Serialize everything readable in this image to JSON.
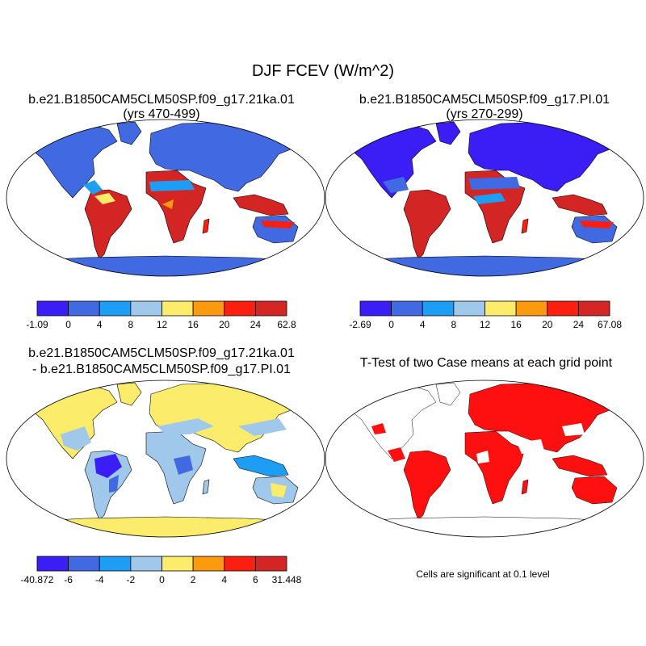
{
  "chart_data": [
    {
      "type": "map",
      "title": "DJF FCEV (W/m^2)",
      "subtitle_line1": "b.e21.B1850CAM5CLM50SP.f09_g17.21ka.01",
      "subtitle_line2": "(yrs 470-499)",
      "colorbar": {
        "labels": [
          "-1.09",
          "0",
          "4",
          "8",
          "12",
          "16",
          "20",
          "24",
          "62.8"
        ],
        "colors": [
          "#3b1ef5",
          "#4169e1",
          "#1e9df5",
          "#a0c8eb",
          "#fcec6c",
          "#fb9a0e",
          "#fb1f0f",
          "#d42525"
        ]
      }
    },
    {
      "type": "map",
      "subtitle_line1": "b.e21.B1850CAM5CLM50SP.f09_g17.PI.01",
      "subtitle_line2": "(yrs 270-299)",
      "colorbar": {
        "labels": [
          "-2.69",
          "0",
          "4",
          "8",
          "12",
          "16",
          "20",
          "24",
          "67.08"
        ],
        "colors": [
          "#3b1ef5",
          "#4169e1",
          "#1e9df5",
          "#a0c8eb",
          "#fcec6c",
          "#fb9a0e",
          "#fb1f0f",
          "#d42525"
        ]
      }
    },
    {
      "type": "map",
      "subtitle_line1": "b.e21.B1850CAM5CLM50SP.f09_g17.21ka.01",
      "subtitle_line2": "- b.e21.B1850CAM5CLM50SP.f09_g17.PI.01",
      "colorbar": {
        "labels": [
          "-40.872",
          "-6",
          "-4",
          "-2",
          "0",
          "2",
          "4",
          "6",
          "31.448"
        ],
        "colors": [
          "#3b1ef5",
          "#4169e1",
          "#1e9df5",
          "#a0c8eb",
          "#fcec6c",
          "#fb9a0e",
          "#fb1f0f",
          "#d42525"
        ]
      }
    },
    {
      "type": "map",
      "subtitle_line1": "T-Test of two Case means at each grid point",
      "note": "Cells are significant at 0.1 level"
    }
  ],
  "colors": {
    "ocean": "#ffffff",
    "coast": "#000000",
    "significant": "#ff1010"
  }
}
